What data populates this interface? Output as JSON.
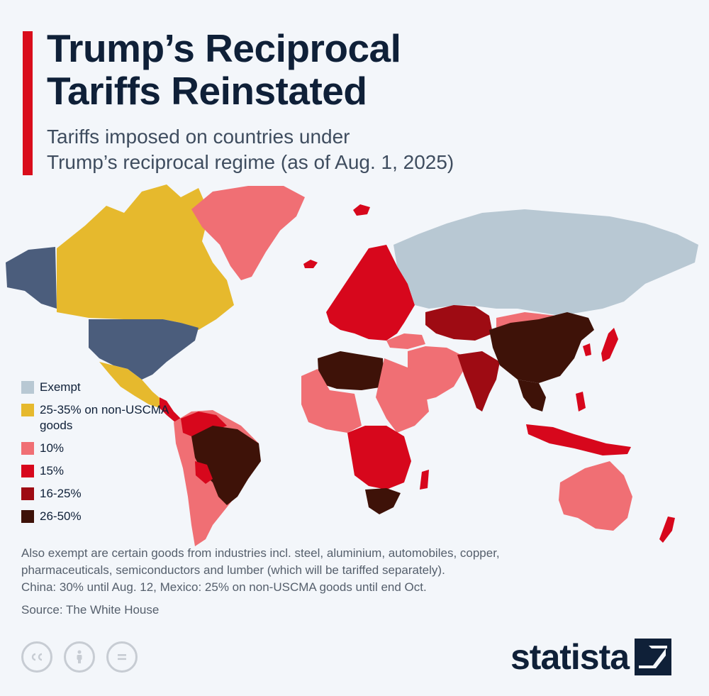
{
  "title": {
    "line1": "Trump’s Reciprocal",
    "line2": "Tariffs Reinstated"
  },
  "subtitle": {
    "line1": "Tariffs imposed on countries under",
    "line2": "Trump’s reciprocal regime (as of Aug. 1, 2025)"
  },
  "legend": [
    {
      "label": "Exempt",
      "color": "#b8c8d3"
    },
    {
      "label": "25-35% on non-USCMA goods",
      "color": "#e6b92d"
    },
    {
      "label": "10%",
      "color": "#f06f74"
    },
    {
      "label": "15%",
      "color": "#d7071c"
    },
    {
      "label": "16-25%",
      "color": "#9e0b13"
    },
    {
      "label": "26-50%",
      "color": "#3e1208"
    }
  ],
  "map_regions": [
    {
      "name": "Alaska",
      "category": "United States"
    },
    {
      "name": "United States",
      "category": "United States"
    },
    {
      "name": "Canada",
      "category": "25-35% on non-USCMA goods"
    },
    {
      "name": "Mexico",
      "category": "25-35% on non-USCMA goods"
    },
    {
      "name": "Greenland",
      "category": "10%"
    },
    {
      "name": "Russia",
      "category": "Exempt"
    },
    {
      "name": "China",
      "category": "26-50%"
    },
    {
      "name": "Brazil",
      "category": "26-50%"
    },
    {
      "name": "India",
      "category": "16-25%"
    },
    {
      "name": "Australia",
      "category": "10%"
    },
    {
      "name": "Southern Africa",
      "category": "26-50%"
    }
  ],
  "colors": {
    "us_fill": "#4b5d7c",
    "accent": "#d90d1b",
    "title": "#0f2038"
  },
  "notes": {
    "line1": "Also exempt are certain goods from industries incl. steel, aluminium, automobiles, copper,",
    "line2": "pharmaceuticals, semiconductors and lumber (which will be tariffed separately).",
    "line3": "China: 30% until Aug. 12, Mexico: 25% on non-USCMA goods until end Oct.",
    "source": "Source: The White House"
  },
  "license_icons": [
    "cc-icon",
    "attribution-icon",
    "no-derivatives-icon"
  ],
  "brand": {
    "name": "statista"
  }
}
